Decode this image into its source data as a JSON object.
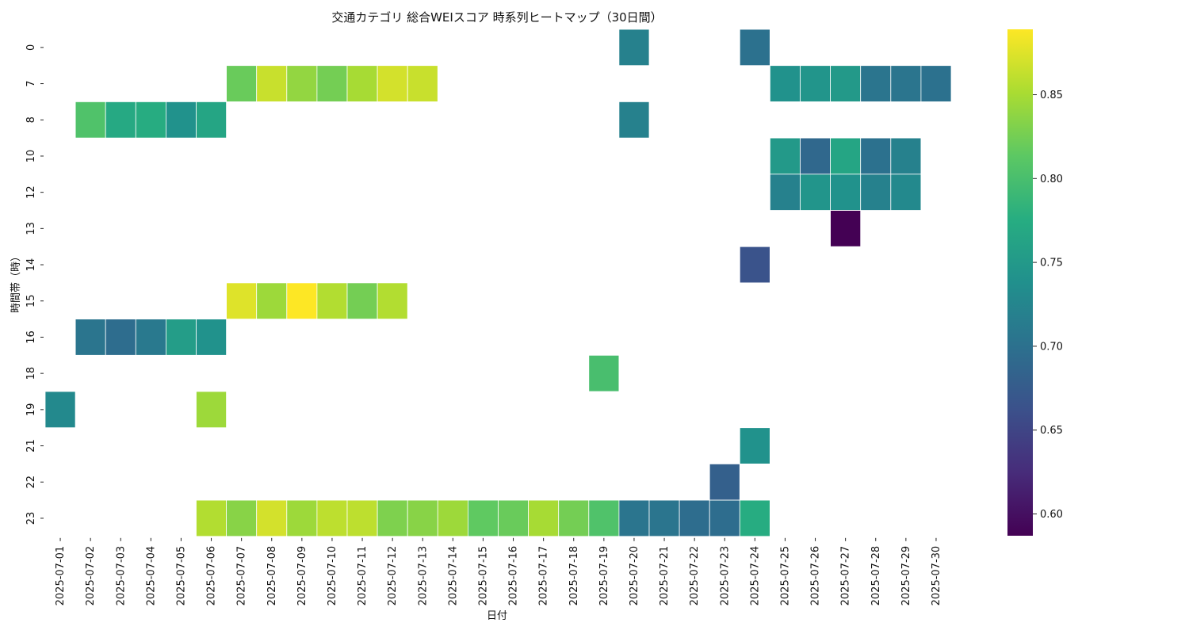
{
  "chart_data": {
    "type": "heatmap",
    "title": "交通カテゴリ 総合WEIスコア 時系列ヒートマップ（30日間）",
    "xlabel": "日付",
    "ylabel": "時間帯（時）",
    "x": [
      "2025-07-01",
      "2025-07-02",
      "2025-07-03",
      "2025-07-04",
      "2025-07-05",
      "2025-07-06",
      "2025-07-07",
      "2025-07-08",
      "2025-07-09",
      "2025-07-10",
      "2025-07-11",
      "2025-07-12",
      "2025-07-13",
      "2025-07-14",
      "2025-07-15",
      "2025-07-16",
      "2025-07-17",
      "2025-07-18",
      "2025-07-19",
      "2025-07-20",
      "2025-07-21",
      "2025-07-22",
      "2025-07-23",
      "2025-07-24",
      "2025-07-25",
      "2025-07-26",
      "2025-07-27",
      "2025-07-28",
      "2025-07-29",
      "2025-07-30"
    ],
    "y": [
      "0",
      "7",
      "8",
      "10",
      "12",
      "13",
      "14",
      "15",
      "16",
      "18",
      "19",
      "21",
      "22",
      "23"
    ],
    "colormap": "viridis",
    "vmin": 0.587,
    "vmax": 0.889,
    "colorbar_ticks": [
      0.6,
      0.65,
      0.7,
      0.75,
      0.8,
      0.85
    ],
    "colorbar_tick_labels": [
      "0.60",
      "0.65",
      "0.70",
      "0.75",
      "0.80",
      "0.85"
    ],
    "cells": [
      {
        "x": "2025-07-20",
        "y": "0",
        "value": 0.72
      },
      {
        "x": "2025-07-24",
        "y": "0",
        "value": 0.7
      },
      {
        "x": "2025-07-07",
        "y": "7",
        "value": 0.82
      },
      {
        "x": "2025-07-08",
        "y": "7",
        "value": 0.865
      },
      {
        "x": "2025-07-09",
        "y": "7",
        "value": 0.84
      },
      {
        "x": "2025-07-10",
        "y": "7",
        "value": 0.825
      },
      {
        "x": "2025-07-11",
        "y": "7",
        "value": 0.85
      },
      {
        "x": "2025-07-12",
        "y": "7",
        "value": 0.87
      },
      {
        "x": "2025-07-13",
        "y": "7",
        "value": 0.865
      },
      {
        "x": "2025-07-25",
        "y": "7",
        "value": 0.74
      },
      {
        "x": "2025-07-26",
        "y": "7",
        "value": 0.745
      },
      {
        "x": "2025-07-27",
        "y": "7",
        "value": 0.75
      },
      {
        "x": "2025-07-28",
        "y": "7",
        "value": 0.705
      },
      {
        "x": "2025-07-29",
        "y": "7",
        "value": 0.705
      },
      {
        "x": "2025-07-30",
        "y": "7",
        "value": 0.7
      },
      {
        "x": "2025-07-02",
        "y": "8",
        "value": 0.805
      },
      {
        "x": "2025-07-03",
        "y": "8",
        "value": 0.77
      },
      {
        "x": "2025-07-04",
        "y": "8",
        "value": 0.775
      },
      {
        "x": "2025-07-05",
        "y": "8",
        "value": 0.74
      },
      {
        "x": "2025-07-06",
        "y": "8",
        "value": 0.765
      },
      {
        "x": "2025-07-20",
        "y": "8",
        "value": 0.72
      },
      {
        "x": "2025-07-25",
        "y": "10",
        "value": 0.75
      },
      {
        "x": "2025-07-26",
        "y": "10",
        "value": 0.69
      },
      {
        "x": "2025-07-27",
        "y": "10",
        "value": 0.765
      },
      {
        "x": "2025-07-28",
        "y": "10",
        "value": 0.7
      },
      {
        "x": "2025-07-29",
        "y": "10",
        "value": 0.72
      },
      {
        "x": "2025-07-25",
        "y": "12",
        "value": 0.72
      },
      {
        "x": "2025-07-26",
        "y": "12",
        "value": 0.745
      },
      {
        "x": "2025-07-27",
        "y": "12",
        "value": 0.74
      },
      {
        "x": "2025-07-28",
        "y": "12",
        "value": 0.72
      },
      {
        "x": "2025-07-29",
        "y": "12",
        "value": 0.73
      },
      {
        "x": "2025-07-27",
        "y": "13",
        "value": 0.587
      },
      {
        "x": "2025-07-24",
        "y": "14",
        "value": 0.665
      },
      {
        "x": "2025-07-07",
        "y": "15",
        "value": 0.875
      },
      {
        "x": "2025-07-08",
        "y": "15",
        "value": 0.845
      },
      {
        "x": "2025-07-09",
        "y": "15",
        "value": 0.889
      },
      {
        "x": "2025-07-10",
        "y": "15",
        "value": 0.855
      },
      {
        "x": "2025-07-11",
        "y": "15",
        "value": 0.825
      },
      {
        "x": "2025-07-12",
        "y": "15",
        "value": 0.855
      },
      {
        "x": "2025-07-02",
        "y": "16",
        "value": 0.705
      },
      {
        "x": "2025-07-03",
        "y": "16",
        "value": 0.695
      },
      {
        "x": "2025-07-04",
        "y": "16",
        "value": 0.71
      },
      {
        "x": "2025-07-05",
        "y": "16",
        "value": 0.755
      },
      {
        "x": "2025-07-06",
        "y": "16",
        "value": 0.74
      },
      {
        "x": "2025-07-19",
        "y": "18",
        "value": 0.8
      },
      {
        "x": "2025-07-01",
        "y": "19",
        "value": 0.73
      },
      {
        "x": "2025-07-06",
        "y": "19",
        "value": 0.845
      },
      {
        "x": "2025-07-24",
        "y": "21",
        "value": 0.74
      },
      {
        "x": "2025-07-23",
        "y": "22",
        "value": 0.68
      },
      {
        "x": "2025-07-06",
        "y": "23",
        "value": 0.855
      },
      {
        "x": "2025-07-07",
        "y": "23",
        "value": 0.835
      },
      {
        "x": "2025-07-08",
        "y": "23",
        "value": 0.87
      },
      {
        "x": "2025-07-09",
        "y": "23",
        "value": 0.845
      },
      {
        "x": "2025-07-10",
        "y": "23",
        "value": 0.86
      },
      {
        "x": "2025-07-11",
        "y": "23",
        "value": 0.86
      },
      {
        "x": "2025-07-12",
        "y": "23",
        "value": 0.83
      },
      {
        "x": "2025-07-13",
        "y": "23",
        "value": 0.835
      },
      {
        "x": "2025-07-14",
        "y": "23",
        "value": 0.845
      },
      {
        "x": "2025-07-15",
        "y": "23",
        "value": 0.815
      },
      {
        "x": "2025-07-16",
        "y": "23",
        "value": 0.82
      },
      {
        "x": "2025-07-17",
        "y": "23",
        "value": 0.85
      },
      {
        "x": "2025-07-18",
        "y": "23",
        "value": 0.825
      },
      {
        "x": "2025-07-19",
        "y": "23",
        "value": 0.805
      },
      {
        "x": "2025-07-20",
        "y": "23",
        "value": 0.705
      },
      {
        "x": "2025-07-21",
        "y": "23",
        "value": 0.705
      },
      {
        "x": "2025-07-22",
        "y": "23",
        "value": 0.695
      },
      {
        "x": "2025-07-23",
        "y": "23",
        "value": 0.695
      },
      {
        "x": "2025-07-24",
        "y": "23",
        "value": 0.775
      }
    ]
  }
}
